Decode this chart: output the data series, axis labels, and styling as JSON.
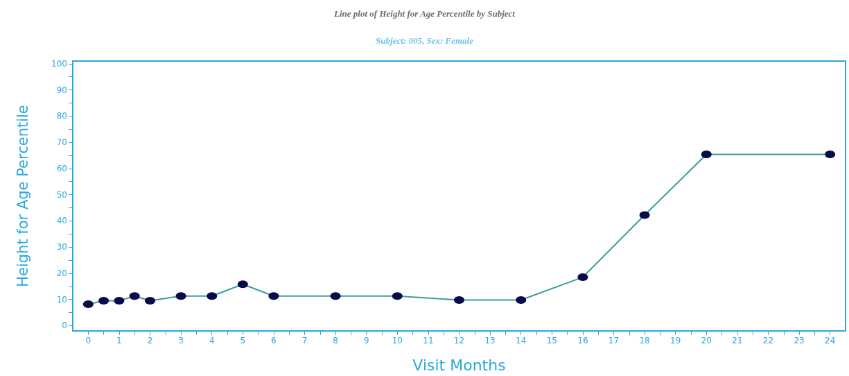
{
  "chart_data": {
    "type": "line",
    "title": "Line plot of Height for Age Percentile by Subject",
    "subtitle": "Subject: 005, Sex: Female",
    "xlabel": "Visit Months",
    "ylabel": "Height for Age Percentile",
    "x": [
      0,
      0.5,
      1,
      1.5,
      2,
      3,
      4,
      5,
      6,
      8,
      10,
      12,
      14,
      16,
      18,
      20,
      24
    ],
    "series": [
      {
        "color": "#3a9e9e",
        "values": [
          8.2,
          9.5,
          9.5,
          11.3,
          9.5,
          11.3,
          11.3,
          15.8,
          11.3,
          11.3,
          11.3,
          9.8,
          9.8,
          18.5,
          42.2,
          65.4,
          65.4
        ]
      }
    ],
    "marker": "circle",
    "line_style": "solid",
    "xlim": [
      -0.5,
      24.5
    ],
    "xticks": [
      0,
      {
        "value": 0.5,
        "label": null
      },
      1,
      {
        "value": 1.5,
        "label": null
      },
      2,
      {
        "value": 2.5,
        "label": null
      },
      3,
      {
        "value": 3.5,
        "label": null
      },
      4,
      {
        "value": 4.5,
        "label": null
      },
      5,
      {
        "value": 5.5,
        "label": null
      },
      6,
      {
        "value": 6.5,
        "label": null
      },
      7,
      {
        "value": 7.5,
        "label": null
      },
      8,
      {
        "value": 8.5,
        "label": null
      },
      9,
      {
        "value": 9.5,
        "label": null
      },
      10,
      {
        "value": 10.5,
        "label": null
      },
      11,
      {
        "value": 11.5,
        "label": null
      },
      12,
      {
        "value": 12.5,
        "label": null
      },
      13,
      {
        "value": 13.5,
        "label": null
      },
      14,
      {
        "value": 14.5,
        "label": null
      },
      15,
      {
        "value": 15.5,
        "label": null
      },
      16,
      {
        "value": 16.5,
        "label": null
      },
      17,
      {
        "value": 17.5,
        "label": null
      },
      18,
      {
        "value": 18.5,
        "label": null
      },
      19,
      {
        "value": 19.5,
        "label": null
      },
      20,
      {
        "value": 20.5,
        "label": null
      },
      21,
      {
        "value": 21.5,
        "label": null
      },
      22,
      {
        "value": 22.5,
        "label": null
      },
      23,
      {
        "value": 23.5,
        "label": null
      },
      24
    ],
    "ylim": [
      -2,
      101
    ],
    "yticks": [
      0,
      {
        "value": 5,
        "label": null
      },
      10,
      {
        "value": 15,
        "label": null
      },
      20,
      {
        "value": 25,
        "label": null
      },
      30,
      {
        "value": 35,
        "label": null
      },
      40,
      {
        "value": 45,
        "label": null
      },
      50,
      {
        "value": 55,
        "label": null
      },
      60,
      {
        "value": 65,
        "label": null
      },
      70,
      {
        "value": 75,
        "label": null
      },
      80,
      {
        "value": 85,
        "label": null
      },
      90,
      {
        "value": 95,
        "label": null
      },
      100
    ]
  }
}
